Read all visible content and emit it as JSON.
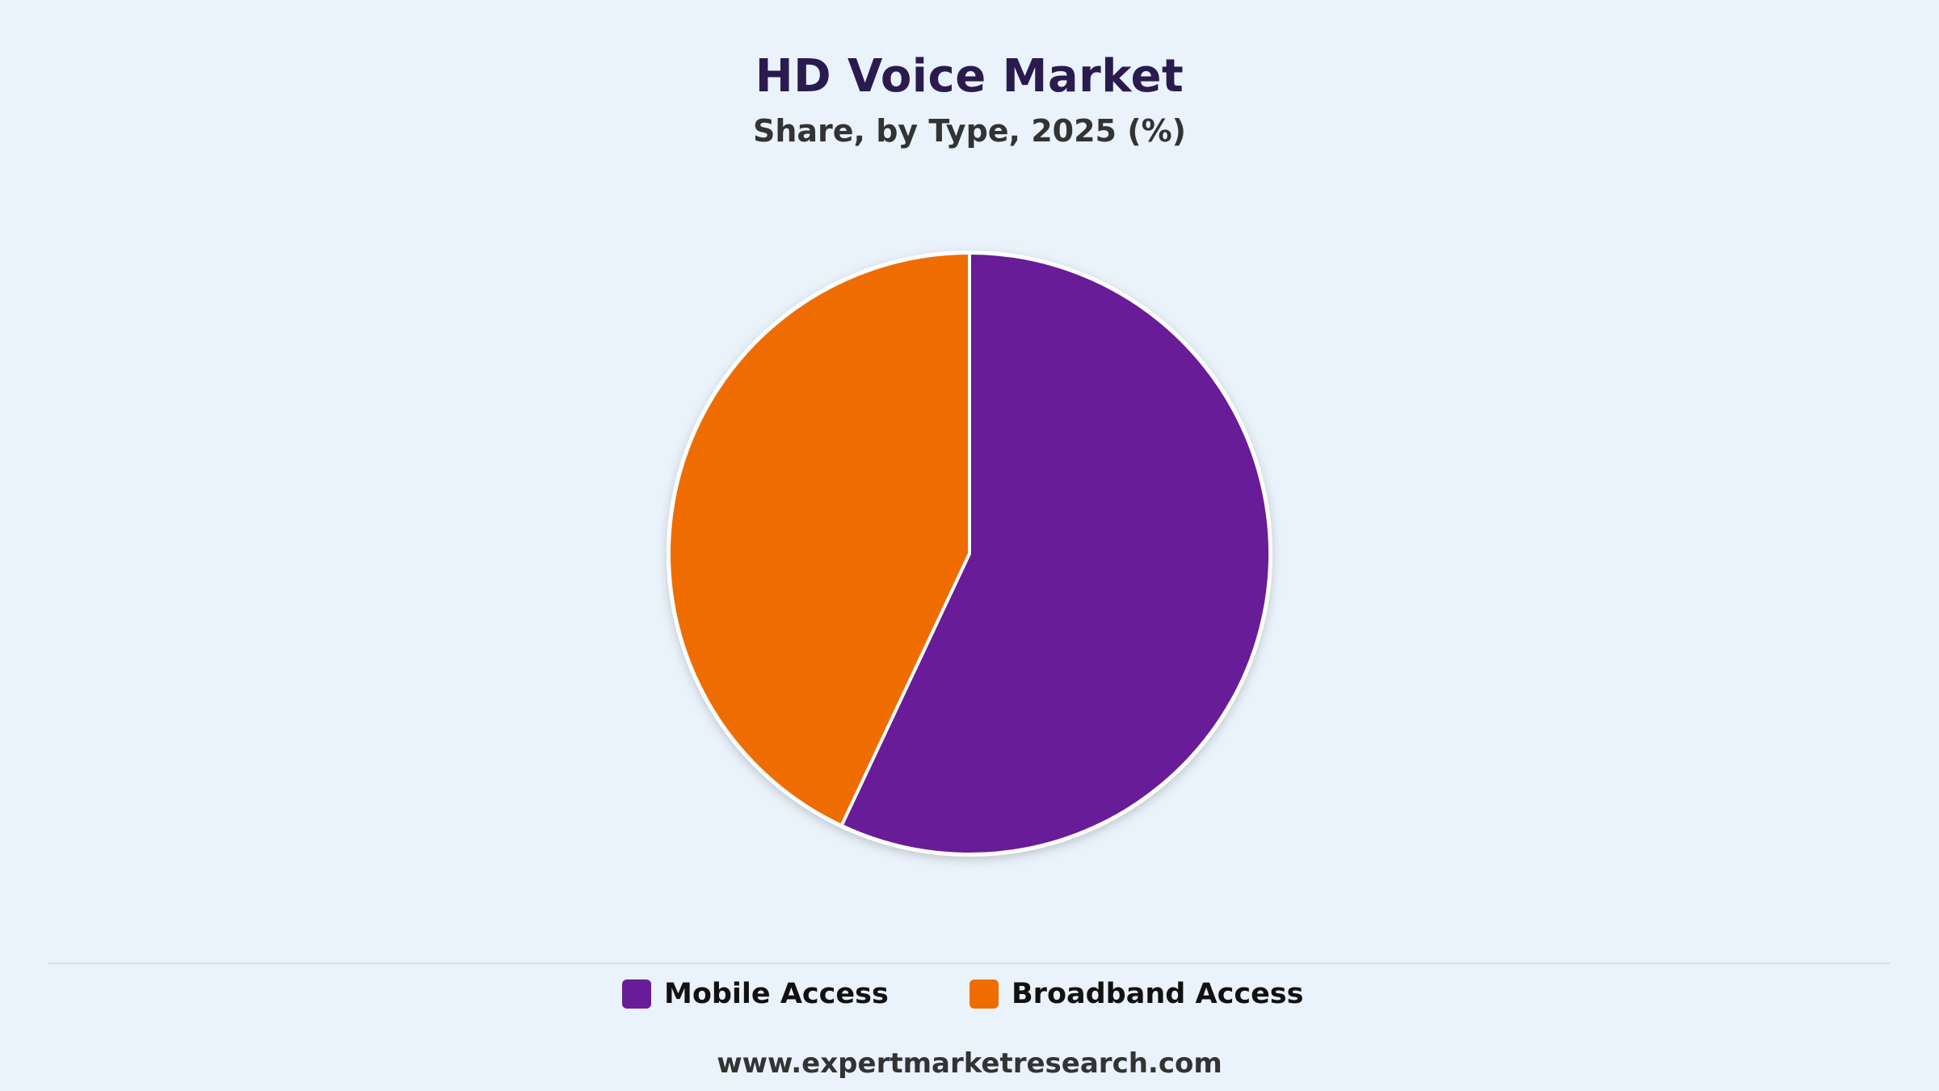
{
  "title": "HD Voice Market",
  "subtitle": "Share, by Type, 2025 (%)",
  "footer": "www.expertmarketresearch.com",
  "colors": {
    "background": "#eaf2fb",
    "slice_border": "#ffffff"
  },
  "chart_data": {
    "type": "pie",
    "title": "HD Voice Market",
    "subtitle": "Share, by Type, 2025 (%)",
    "start_angle_deg": 0,
    "direction": "clockwise",
    "legend_position": "bottom",
    "slices": [
      {
        "label": "Mobile Access",
        "value": 57,
        "color": "#681c98"
      },
      {
        "label": "Broadband Access",
        "value": 43,
        "color": "#ef6c00"
      }
    ]
  }
}
